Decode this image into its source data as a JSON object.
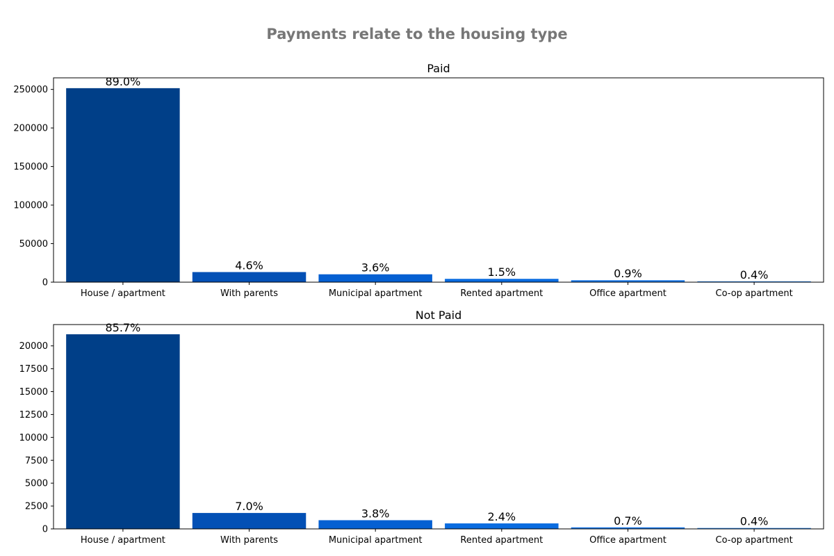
{
  "figure": {
    "title": "Payments relate to the housing type",
    "title_color": "#777777"
  },
  "chart_data": [
    {
      "type": "bar",
      "title": "Paid",
      "categories": [
        "House / apartment",
        "With parents",
        "Municipal apartment",
        "Rented apartment",
        "Office apartment",
        "Co-op apartment"
      ],
      "values": [
        251600,
        13100,
        10200,
        4300,
        2500,
        1100
      ],
      "labels": [
        "89.0%",
        "4.6%",
        "3.6%",
        "1.5%",
        "0.9%",
        "0.4%"
      ],
      "colors": [
        "#003f88",
        "#0350b5",
        "#0560d2",
        "#0a6ce0",
        "#1a78e6",
        "#2a83ea"
      ],
      "ylim": [
        0,
        265000
      ],
      "yticks": [
        0,
        50000,
        100000,
        150000,
        200000,
        250000
      ],
      "xlabel": "",
      "ylabel": "",
      "grid": false,
      "legend": false
    },
    {
      "type": "bar",
      "title": "Not Paid",
      "categories": [
        "House / apartment",
        "With parents",
        "Municipal apartment",
        "Rented apartment",
        "Office apartment",
        "Co-op apartment"
      ],
      "values": [
        21270,
        1740,
        950,
        600,
        170,
        100
      ],
      "labels": [
        "85.7%",
        "7.0%",
        "3.8%",
        "2.4%",
        "0.7%",
        "0.4%"
      ],
      "colors": [
        "#003f88",
        "#0350b5",
        "#0560d2",
        "#0a6ce0",
        "#1a78e6",
        "#2a83ea"
      ],
      "ylim": [
        0,
        22330
      ],
      "yticks": [
        0,
        2500,
        5000,
        7500,
        10000,
        12500,
        15000,
        17500,
        20000
      ],
      "xlabel": "",
      "ylabel": "",
      "grid": false,
      "legend": false
    }
  ]
}
